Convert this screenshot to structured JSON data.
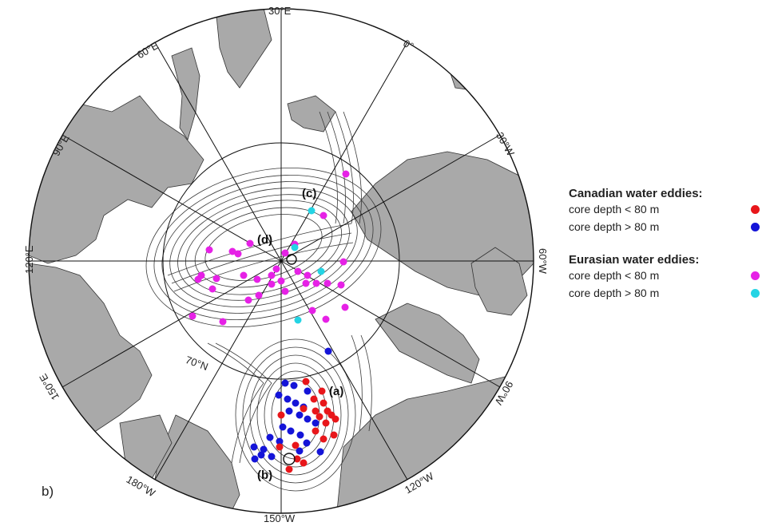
{
  "panel_label": "b)",
  "meridian_labels": {
    "m30e": "30°E",
    "m60e": "60°E",
    "m0": "0°",
    "m90e": "90°E",
    "m30w": "30°W",
    "m120e": "120°E",
    "m60w": "60°W",
    "m150e": "150°E",
    "m90w": "90°W",
    "m180w": "180°W",
    "m120w": "120°W",
    "m150w": "150°W",
    "lat70n": "70°N"
  },
  "region_labels": {
    "a": "(a)",
    "b": "(b)",
    "c": "(c)",
    "d": "(d)"
  },
  "legend": {
    "canadian_title": "Canadian water eddies:",
    "canadian_shallow": "core depth < 80 m",
    "canadian_deep": "core depth > 80 m",
    "eurasian_title": "Eurasian water eddies:",
    "eurasian_shallow": "core depth < 80 m",
    "eurasian_deep": "core depth > 80 m"
  },
  "colors": {
    "canadian_shallow": "#e8161a",
    "canadian_deep": "#1414d8",
    "eurasian_shallow": "#e621e6",
    "eurasian_deep": "#24d4e4",
    "land": "#a9a9a9",
    "ocean": "#ffffff",
    "contour": "#3a3a3a"
  }
}
